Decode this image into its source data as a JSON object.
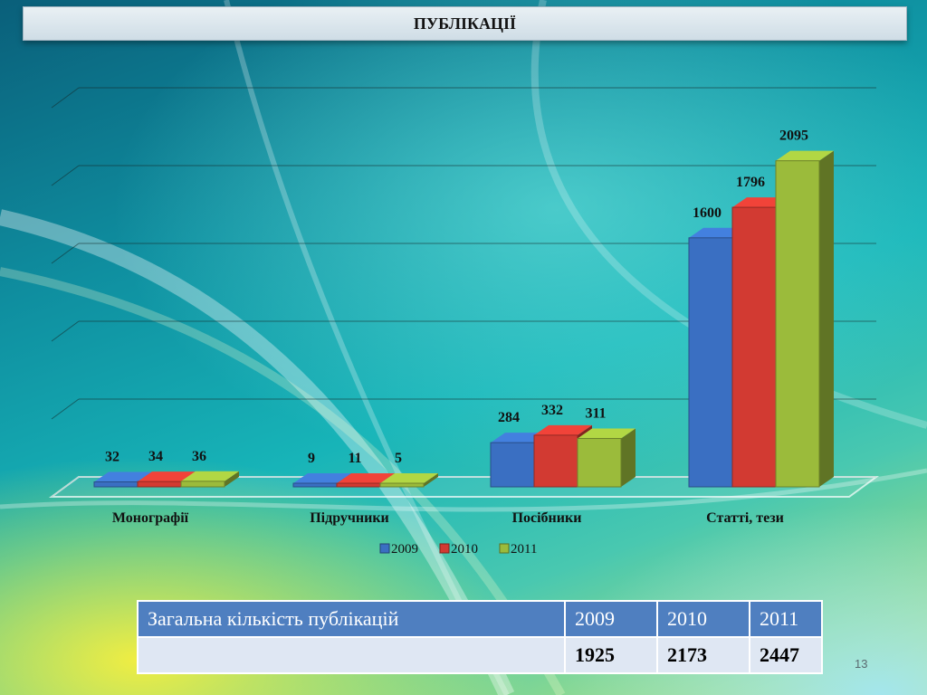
{
  "title": "ПУБЛІКАЦІЇ",
  "chart_data": {
    "type": "bar",
    "categories": [
      "Монографії",
      "Підручники",
      "Посібники",
      "Статті, тези"
    ],
    "series": [
      {
        "name": "2009",
        "color": "#3a6fc2",
        "values": [
          32,
          9,
          284,
          1600
        ]
      },
      {
        "name": "2010",
        "color": "#d23a32",
        "values": [
          34,
          11,
          332,
          1796
        ]
      },
      {
        "name": "2011",
        "color": "#9bbb3b",
        "values": [
          36,
          5,
          311,
          2095
        ]
      }
    ],
    "ylim": [
      0,
      2500
    ],
    "grid": true,
    "legend_position": "bottom",
    "three_d": true
  },
  "summary_table": {
    "label": "Загальна кількість публікацій",
    "years": [
      "2009",
      "2010",
      "2011"
    ],
    "totals": [
      "1925",
      "2173",
      "2447"
    ]
  },
  "slide_number": "13"
}
